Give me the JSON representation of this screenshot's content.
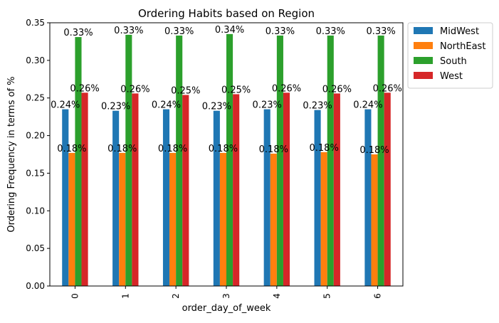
{
  "chart_data": {
    "type": "bar",
    "title": "Ordering Habits based on Region",
    "xlabel": "order_day_of_week",
    "ylabel": "Ordering Frequency in terms of %",
    "categories": [
      "0",
      "1",
      "2",
      "3",
      "4",
      "5",
      "6"
    ],
    "ylim": [
      0,
      0.35
    ],
    "yticks": [
      "0.00",
      "0.05",
      "0.10",
      "0.15",
      "0.20",
      "0.25",
      "0.30",
      "0.35"
    ],
    "legend_position": "outside-top-right",
    "grid": false,
    "series": [
      {
        "name": "MidWest",
        "color": "#1f77b4",
        "values": [
          0.235,
          0.233,
          0.235,
          0.233,
          0.235,
          0.234,
          0.235
        ],
        "labels": [
          "0.24%",
          "0.23%",
          "0.24%",
          "0.23%",
          "0.23%",
          "0.23%",
          "0.24%"
        ]
      },
      {
        "name": "NorthEast",
        "color": "#ff7f0e",
        "values": [
          0.177,
          0.177,
          0.177,
          0.177,
          0.176,
          0.178,
          0.175
        ],
        "labels": [
          "0.18%",
          "0.18%",
          "0.18%",
          "0.18%",
          "0.18%",
          "0.18%",
          "0.18%"
        ]
      },
      {
        "name": "South",
        "color": "#2ca02c",
        "values": [
          0.331,
          0.334,
          0.333,
          0.335,
          0.333,
          0.333,
          0.333
        ],
        "labels": [
          "0.33%",
          "0.33%",
          "0.33%",
          "0.34%",
          "0.33%",
          "0.33%",
          "0.33%"
        ]
      },
      {
        "name": "West",
        "color": "#d62728",
        "values": [
          0.257,
          0.256,
          0.254,
          0.255,
          0.257,
          0.256,
          0.257
        ],
        "labels": [
          "0.26%",
          "0.26%",
          "0.25%",
          "0.25%",
          "0.26%",
          "0.26%",
          "0.26%"
        ]
      }
    ]
  }
}
